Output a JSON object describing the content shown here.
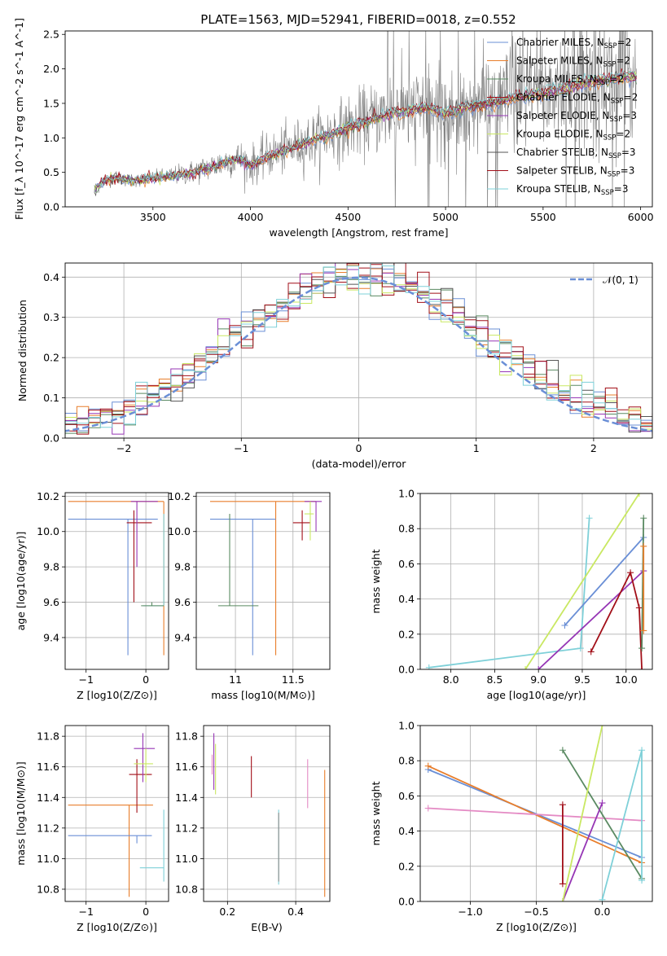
{
  "figure": {
    "title": "PLATE=1563, MJD=52941, FIBERID=0018, z=0.552"
  },
  "colors": {
    "chabrier_miles": "#6a8fd6",
    "salpeter_miles": "#e87e2b",
    "kroupa_miles": "#5a8a62",
    "chabrier_elodie": "#a20f18",
    "salpeter_elodie": "#9636b5",
    "kroupa_elodie": "#7a4a3c",
    "chabrier_stelib": "#e48ac4",
    "salpeter_stelib": "#8a8a8a",
    "kroupa_stelib": "#c9e862",
    "cyan": "#7ed0d8",
    "gaussian": "#6a8fd6",
    "data": "#808080"
  },
  "legend": [
    {
      "label": "Chabrier MILES, N",
      "sub": "SSP",
      "eq": "=2",
      "color": "#6a8fd6"
    },
    {
      "label": "Salpeter MILES, N",
      "sub": "SSP",
      "eq": "=2",
      "color": "#e87e2b"
    },
    {
      "label": "Kroupa MILES, N",
      "sub": "SSP",
      "eq": "=2",
      "color": "#5a8a62"
    },
    {
      "label": "Chabrier ELODIE, N",
      "sub": "SSP",
      "eq": "=2",
      "color": "#a20f18"
    },
    {
      "label": "Salpeter ELODIE, N",
      "sub": "SSP",
      "eq": "=3",
      "color": "#9636b5"
    },
    {
      "label": "Kroupa ELODIE, N",
      "sub": "SSP",
      "eq": "=2",
      "color": "#c9e862"
    },
    {
      "label": "Chabrier STELIB, N",
      "sub": "SSP",
      "eq": "=3",
      "color": "#555555"
    },
    {
      "label": "Salpeter STELIB, N",
      "sub": "SSP",
      "eq": "=3",
      "color": "#a20f18"
    },
    {
      "label": "Kroupa STELIB, N",
      "sub": "SSP",
      "eq": "=3",
      "color": "#7ed0d8"
    }
  ],
  "gauss_legend": "𝒩(0, 1)",
  "chart_data": [
    {
      "id": "spectrum",
      "type": "line",
      "title": "PLATE=1563, MJD=52941, FIBERID=0018, z=0.552",
      "xlabel": "wavelength [Angstrom, rest frame]",
      "ylabel": "Flux [f_λ 10^-17 erg cm^-2 s^-1 A^-1]",
      "xlim": [
        3050,
        6060
      ],
      "ylim": [
        0,
        2.55
      ],
      "xticks": [
        3500,
        4000,
        4500,
        5000,
        5500,
        6000
      ],
      "yticks": [
        0.0,
        0.5,
        1.0,
        1.5,
        2.0,
        2.5
      ],
      "model_continuum": {
        "x": [
          3200,
          3250,
          3300,
          3400,
          3500,
          3600,
          3700,
          3800,
          3900,
          3950,
          4000,
          4100,
          4200,
          4300,
          4400,
          4500,
          4600,
          4700,
          4800,
          4900,
          5000,
          5100,
          5200,
          5300,
          5400,
          5500,
          5600,
          5700,
          5800,
          5900
        ],
        "y": [
          0.25,
          0.38,
          0.42,
          0.38,
          0.42,
          0.45,
          0.5,
          0.58,
          0.68,
          0.7,
          0.6,
          0.75,
          0.85,
          0.95,
          1.05,
          1.15,
          1.25,
          1.35,
          1.4,
          1.45,
          1.35,
          1.45,
          1.5,
          1.55,
          1.62,
          1.66,
          1.72,
          1.8,
          1.85,
          1.9
        ]
      }
    },
    {
      "id": "residuals",
      "type": "line",
      "xlabel": "(data-model)/error",
      "ylabel": "Normed distribution",
      "xlim": [
        -2.5,
        2.5
      ],
      "ylim": [
        0,
        0.435
      ],
      "xticks": [
        -2,
        -1,
        0,
        1,
        2
      ],
      "yticks": [
        0.0,
        0.1,
        0.2,
        0.3,
        0.4
      ],
      "series": [
        {
          "name": "N(0,1)",
          "color": "#6a8fd6"
        }
      ]
    },
    {
      "id": "age_vs_Z",
      "type": "scatter",
      "xlabel": "Z [log10(Z/Z⊙)]",
      "ylabel": "age  [log10(age/yr)]",
      "xlim": [
        -1.35,
        0.38
      ],
      "ylim": [
        9.22,
        10.22
      ],
      "xticks": [
        -1,
        0
      ],
      "yticks": [
        9.4,
        9.6,
        9.8,
        10.0,
        10.2
      ]
    },
    {
      "id": "age_vs_mass",
      "type": "scatter",
      "xlabel": "mass [log10(M/M⊙)]",
      "ylabel": "",
      "xlim": [
        10.66,
        11.82
      ],
      "ylim": [
        9.22,
        10.22
      ],
      "xticks": [
        11.0,
        11.5
      ],
      "yticks": [
        9.4,
        9.6,
        9.8,
        10.0,
        10.2
      ]
    },
    {
      "id": "weight_vs_age",
      "type": "line",
      "xlabel": "age  [log10(age/yr)]",
      "ylabel": "mass weight",
      "xlim": [
        7.65,
        10.3
      ],
      "ylim": [
        0,
        1.0
      ],
      "xticks": [
        8.0,
        8.5,
        9.0,
        9.5,
        10.0
      ],
      "yticks": [
        0.0,
        0.2,
        0.4,
        0.6,
        0.8,
        1.0
      ]
    },
    {
      "id": "mass_vs_Z",
      "type": "scatter",
      "xlabel": "Z [log10(Z/Z⊙)]",
      "ylabel": "mass [log10(M/M⊙)]",
      "xlim": [
        -1.35,
        0.38
      ],
      "ylim": [
        10.72,
        11.87
      ],
      "xticks": [
        -1,
        0
      ],
      "yticks": [
        10.8,
        11.0,
        11.2,
        11.4,
        11.6,
        11.8
      ]
    },
    {
      "id": "mass_vs_ebv",
      "type": "scatter",
      "xlabel": "E(B-V)",
      "ylabel": "",
      "xlim": [
        0.13,
        0.5
      ],
      "ylim": [
        10.72,
        11.87
      ],
      "xticks": [
        0.2,
        0.4
      ],
      "yticks": [
        10.8,
        11.0,
        11.2,
        11.4,
        11.6,
        11.8
      ]
    },
    {
      "id": "weight_vs_Z",
      "type": "line",
      "xlabel": "Z [log10(Z/Z⊙)]",
      "ylabel": "mass weight",
      "xlim": [
        -1.38,
        0.38
      ],
      "ylim": [
        0,
        1.0
      ],
      "xticks": [
        -1.0,
        -0.5,
        0.0
      ],
      "yticks": [
        0.0,
        0.2,
        0.4,
        0.6,
        0.8,
        1.0
      ]
    }
  ]
}
